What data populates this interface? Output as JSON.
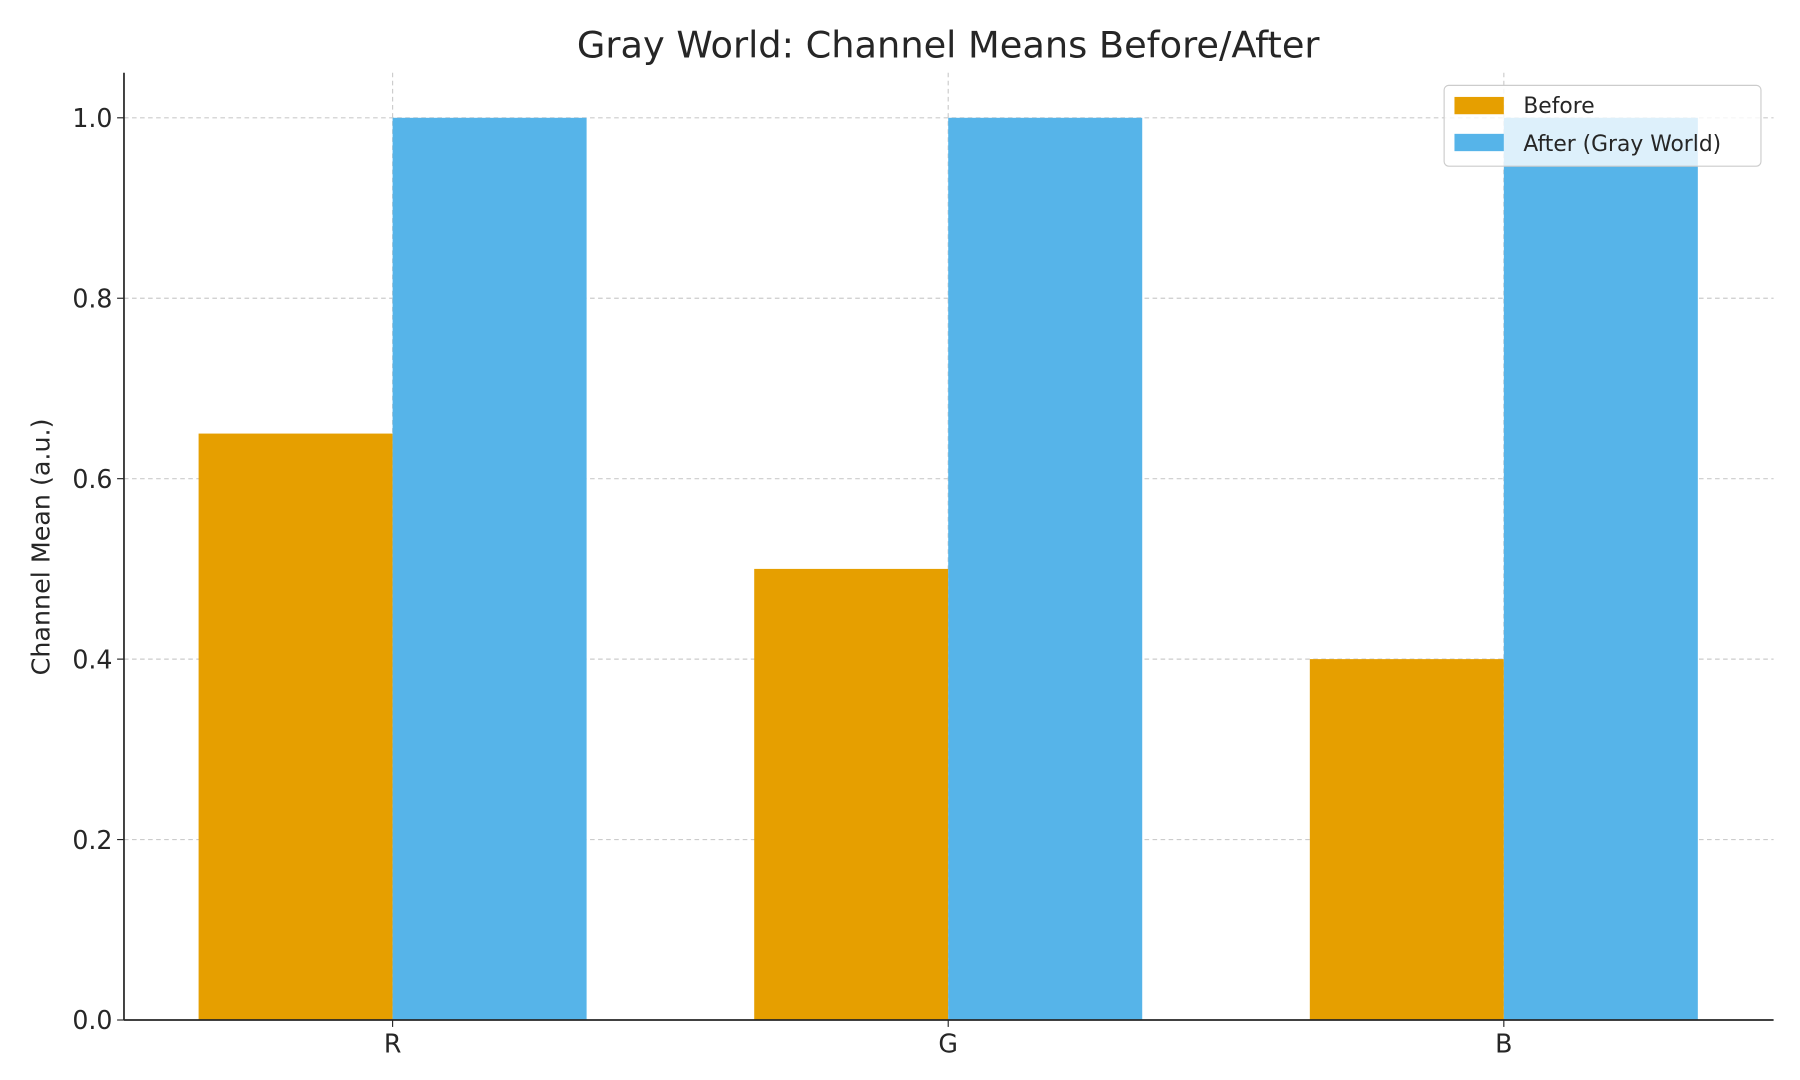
{
  "chart_data": {
    "type": "bar",
    "title": "Gray World: Channel Means Before/After",
    "xlabel": "",
    "ylabel": "Channel Mean (a.u.)",
    "categories": [
      "R",
      "G",
      "B"
    ],
    "series": [
      {
        "name": "Before",
        "values": [
          0.65,
          0.5,
          0.4
        ],
        "color": "#E69F00"
      },
      {
        "name": "After (Gray World)",
        "values": [
          1.0,
          1.0,
          1.0
        ],
        "color": "#56B4E9"
      }
    ],
    "ylim": [
      0,
      1.05
    ],
    "yticks": [
      "0.0",
      "0.2",
      "0.4",
      "0.6",
      "0.8",
      "1.0"
    ],
    "grid": true,
    "legend": "top-right"
  }
}
